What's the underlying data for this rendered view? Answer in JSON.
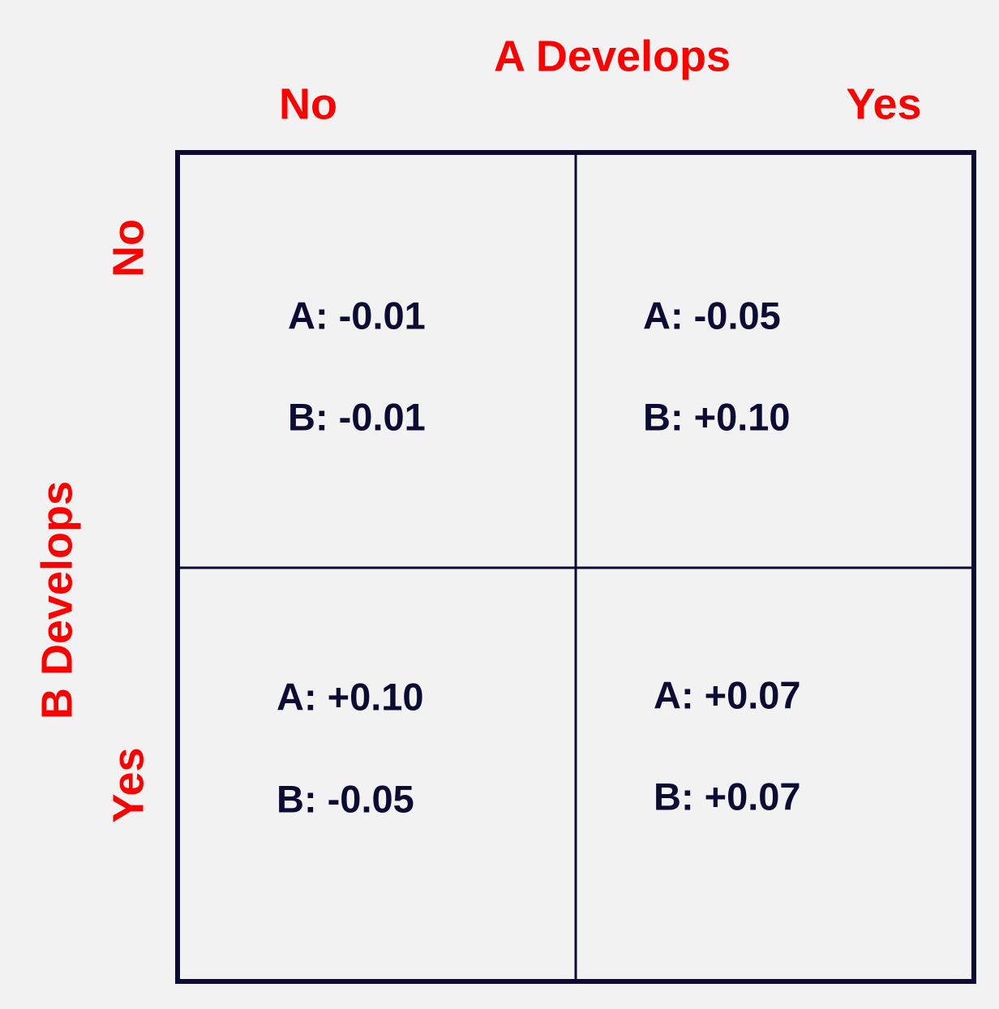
{
  "header": {
    "title": "A Develops",
    "columns": [
      "No",
      "Yes"
    ]
  },
  "side": {
    "title": "B Develops",
    "rows": [
      "No",
      "Yes"
    ]
  },
  "cells": [
    [
      {
        "a": "A: -0.01",
        "b": "B: -0.01"
      },
      {
        "a": "A: -0.05",
        "b": "B: +0.10"
      }
    ],
    [
      {
        "a": "A: +0.10",
        "b": "B: -0.05"
      },
      {
        "a": "A: +0.07",
        "b": "B: +0.07"
      }
    ]
  ]
}
